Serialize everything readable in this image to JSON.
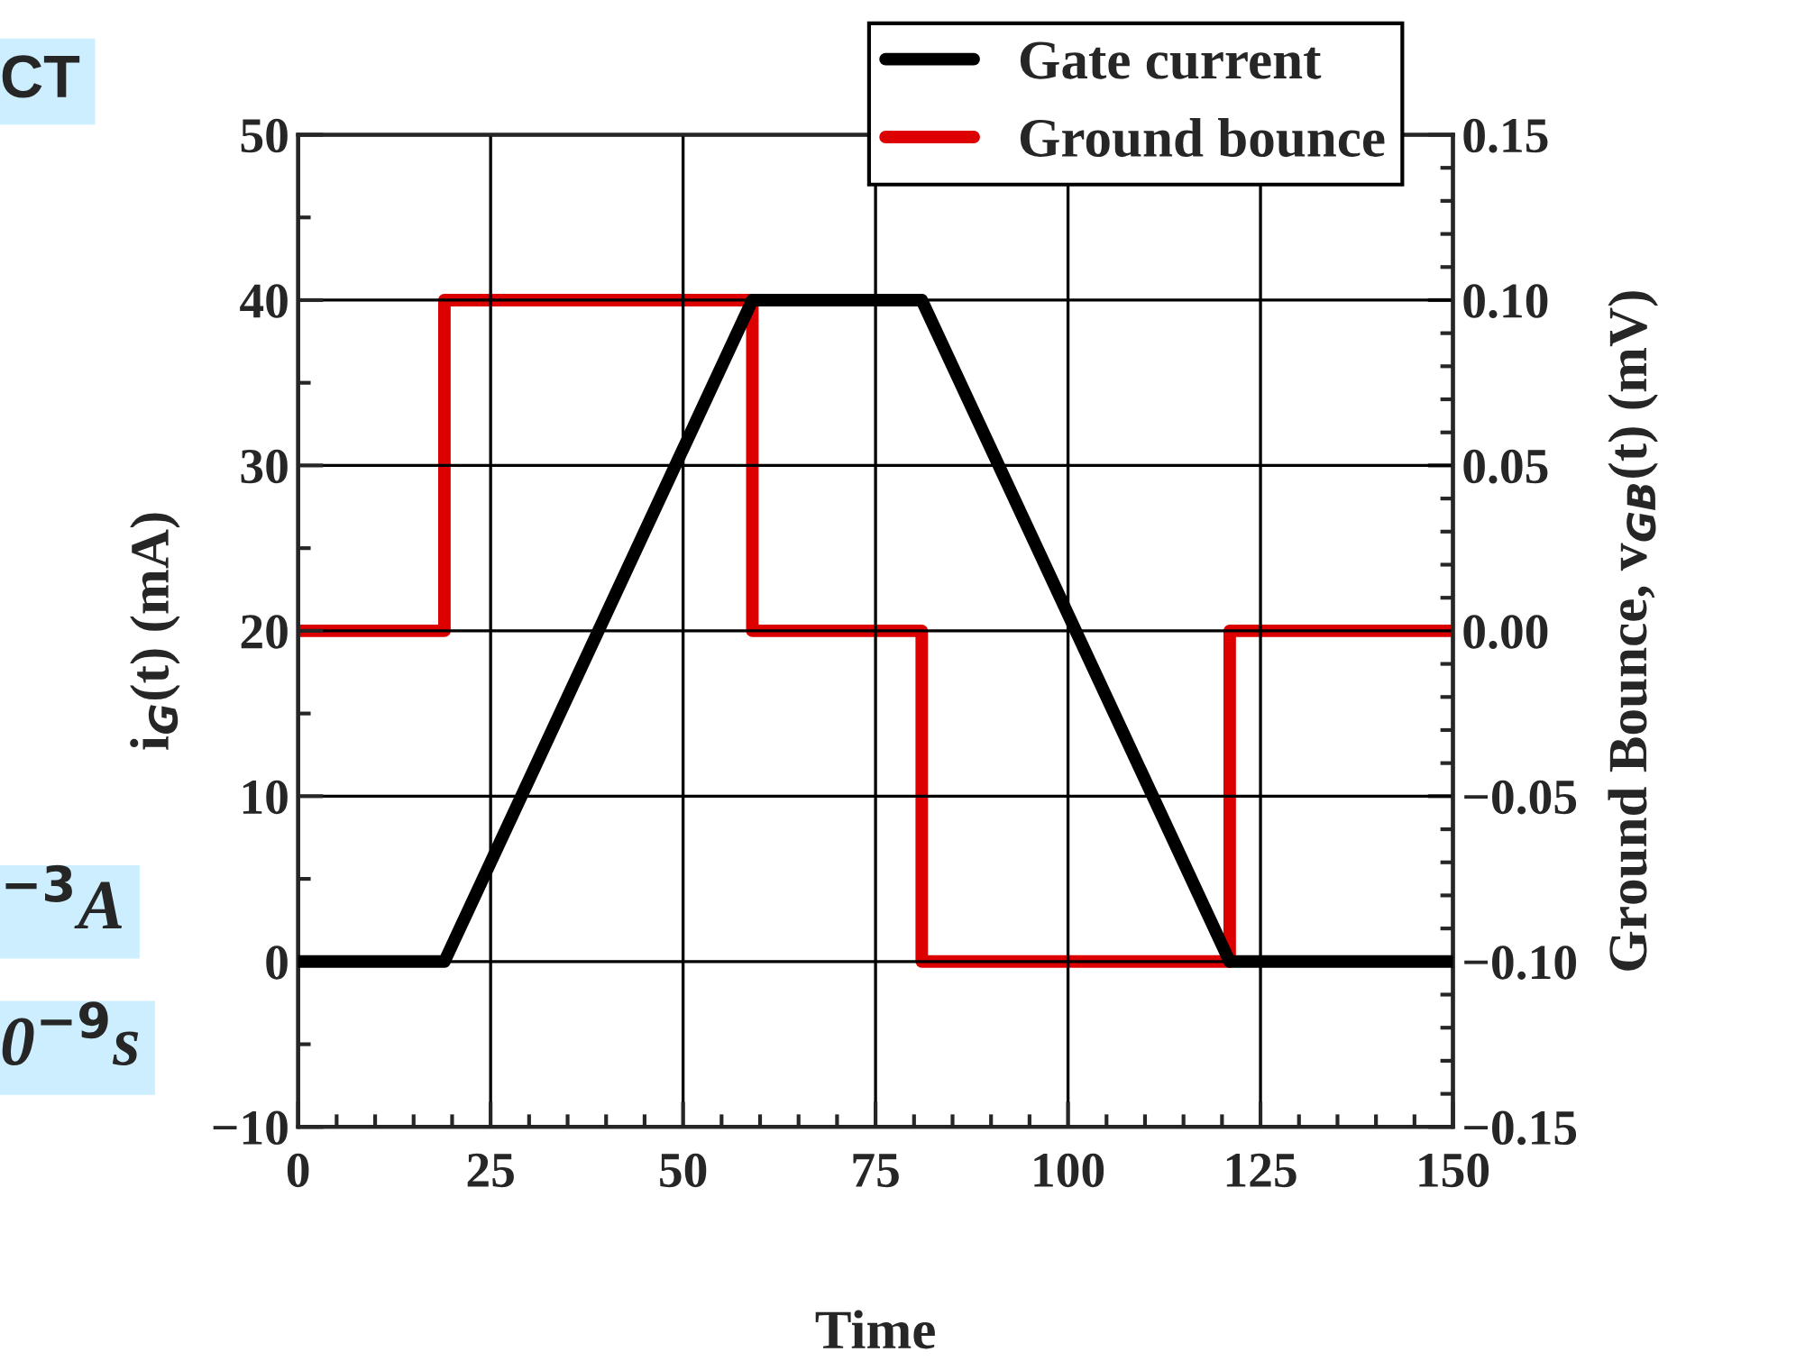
{
  "chart_data": {
    "type": "line",
    "xlabel": "Time",
    "ylabel": "i$_{G}$(t) (mA)",
    "y2label": "Ground Bounce, v$_{GB}$(t) (mV)",
    "series": [
      {
        "name": "Gate current",
        "color": "#000000",
        "x": [
          0,
          19,
          59,
          81,
          121,
          150
        ],
        "values": [
          0,
          0,
          40,
          40,
          0,
          0
        ]
      },
      {
        "name": "Ground bounce",
        "type": "step",
        "axis": "y2",
        "color": "#dd0000",
        "x": [
          0,
          19,
          59,
          81,
          121,
          150
        ],
        "values": [
          0,
          0.1,
          0,
          -0.1,
          0,
          0
        ]
      }
    ],
    "xlim": [
      0,
      150
    ],
    "xticks": [
      0,
      25,
      50,
      75,
      100,
      125,
      150
    ],
    "ylim": [
      -10,
      50
    ],
    "yticks": [
      {
        "value": -10,
        "label": "−10"
      },
      0,
      10,
      20,
      30,
      40,
      50
    ],
    "y2lim": [
      -0.15,
      0.15
    ],
    "y2ticks": [
      {
        "value": -0.15,
        "label": "−0.15"
      },
      {
        "value": -0.1,
        "label": "−0.10"
      },
      {
        "value": -0.05,
        "label": "−0.05"
      },
      {
        "value": 0,
        "label": "0.00"
      },
      {
        "value": 0.05,
        "label": "0.05"
      },
      {
        "value": 0.1,
        "label": "0.10"
      },
      {
        "value": 0.15,
        "label": "0.15"
      }
    ],
    "grid": true,
    "legend": "top right",
    "annotations": [
      "CT",
      "$^{−3}$A",
      "0$^{−9}$s"
    ]
  }
}
